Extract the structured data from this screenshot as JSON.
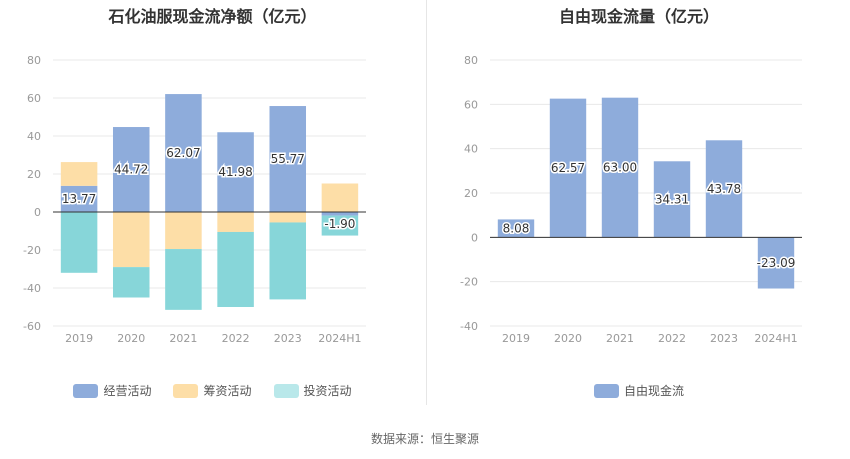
{
  "source": "数据来源：恒生聚源",
  "colors": {
    "operating": "#8eacdb",
    "financing": "#fddea7",
    "investing": "#87d6d9",
    "fcf": "#8eacdb",
    "grid": "#e8e8e8",
    "axis": "#333333",
    "tick": "#999999"
  },
  "chart_data": [
    {
      "type": "bar",
      "title": "石化油服现金流净额（亿元）",
      "categories": [
        "2019",
        "2020",
        "2021",
        "2022",
        "2023",
        "2024H1"
      ],
      "ylim": [
        -60,
        80
      ],
      "yticks": [
        80,
        60,
        40,
        20,
        0,
        -20,
        -40,
        -60
      ],
      "stacked": true,
      "series": [
        {
          "name": "经营活动",
          "values": [
            13.77,
            44.72,
            62.07,
            41.98,
            55.77,
            -1.9
          ]
        },
        {
          "name": "筹资活动",
          "values": [
            12.5,
            -29.0,
            -19.5,
            -10.5,
            -5.5,
            15.0
          ]
        },
        {
          "name": "投资活动",
          "values": [
            -32.0,
            -16.0,
            -32.0,
            -39.5,
            -40.5,
            -10.5
          ]
        }
      ],
      "data_labels": [
        "13.77",
        "44.72",
        "62.07",
        "41.98",
        "55.77",
        "-1.90"
      ],
      "legend": [
        "经营活动",
        "筹资活动",
        "投资活动"
      ]
    },
    {
      "type": "bar",
      "title": "自由现金流量（亿元）",
      "categories": [
        "2019",
        "2020",
        "2021",
        "2022",
        "2023",
        "2024H1"
      ],
      "ylim": [
        -40,
        80
      ],
      "yticks": [
        80,
        60,
        40,
        20,
        0,
        -20,
        -40
      ],
      "series": [
        {
          "name": "自由现金流",
          "values": [
            8.08,
            62.57,
            63.0,
            34.31,
            43.78,
            -23.09
          ]
        }
      ],
      "data_labels": [
        "8.08",
        "62.57",
        "63.00",
        "34.31",
        "43.78",
        "-23.09"
      ],
      "legend": [
        "自由现金流"
      ]
    }
  ]
}
